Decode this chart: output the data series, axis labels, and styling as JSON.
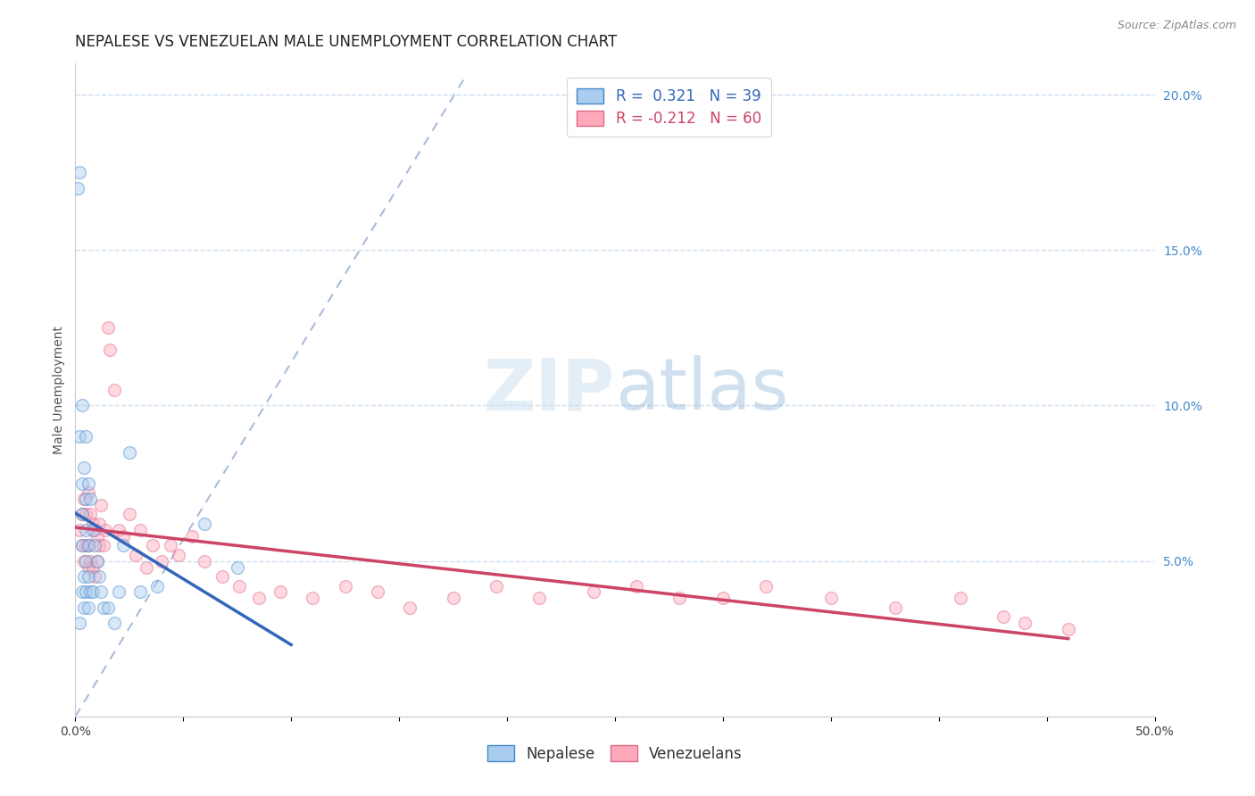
{
  "title": "NEPALESE VS VENEZUELAN MALE UNEMPLOYMENT CORRELATION CHART",
  "source_text": "Source: ZipAtlas.com",
  "ylabel": "Male Unemployment",
  "xlim": [
    0.0,
    0.5
  ],
  "ylim": [
    0.0,
    0.21
  ],
  "xticks": [
    0.0,
    0.05,
    0.1,
    0.15,
    0.2,
    0.25,
    0.3,
    0.35,
    0.4,
    0.45,
    0.5
  ],
  "yticks": [
    0.0,
    0.05,
    0.1,
    0.15,
    0.2
  ],
  "nepalese_R": 0.321,
  "nepalese_N": 39,
  "venezuelan_R": -0.212,
  "venezuelan_N": 60,
  "nepalese_color": "#aaccee",
  "nepalese_edge_color": "#4488cc",
  "nepalese_line_color": "#3366bb",
  "venezuelan_color": "#ffaabb",
  "venezuelan_edge_color": "#dd6688",
  "venezuelan_line_color": "#cc4466",
  "diagonal_color": "#aabbdd",
  "grid_color": "#ccddee",
  "background_color": "#ffffff",
  "nepalese_x": [
    0.001,
    0.002,
    0.002,
    0.002,
    0.003,
    0.003,
    0.003,
    0.003,
    0.003,
    0.004,
    0.004,
    0.004,
    0.005,
    0.005,
    0.005,
    0.005,
    0.005,
    0.006,
    0.006,
    0.006,
    0.006,
    0.007,
    0.007,
    0.008,
    0.008,
    0.009,
    0.01,
    0.011,
    0.012,
    0.013,
    0.015,
    0.018,
    0.02,
    0.022,
    0.025,
    0.03,
    0.038,
    0.06,
    0.075
  ],
  "nepalese_y": [
    0.17,
    0.175,
    0.09,
    0.03,
    0.1,
    0.075,
    0.065,
    0.055,
    0.04,
    0.08,
    0.045,
    0.035,
    0.09,
    0.07,
    0.06,
    0.05,
    0.04,
    0.075,
    0.055,
    0.045,
    0.035,
    0.07,
    0.04,
    0.06,
    0.04,
    0.055,
    0.05,
    0.045,
    0.04,
    0.035,
    0.035,
    0.03,
    0.04,
    0.055,
    0.085,
    0.04,
    0.042,
    0.062,
    0.048
  ],
  "venezuelan_x": [
    0.002,
    0.003,
    0.003,
    0.004,
    0.004,
    0.005,
    0.005,
    0.006,
    0.006,
    0.006,
    0.007,
    0.007,
    0.008,
    0.008,
    0.009,
    0.009,
    0.01,
    0.01,
    0.011,
    0.011,
    0.012,
    0.013,
    0.014,
    0.015,
    0.016,
    0.018,
    0.02,
    0.022,
    0.025,
    0.028,
    0.03,
    0.033,
    0.036,
    0.04,
    0.044,
    0.048,
    0.054,
    0.06,
    0.068,
    0.076,
    0.085,
    0.095,
    0.11,
    0.125,
    0.14,
    0.155,
    0.175,
    0.195,
    0.215,
    0.24,
    0.26,
    0.28,
    0.3,
    0.32,
    0.35,
    0.38,
    0.41,
    0.43,
    0.44,
    0.46
  ],
  "venezuelan_y": [
    0.06,
    0.065,
    0.055,
    0.07,
    0.05,
    0.065,
    0.055,
    0.072,
    0.048,
    0.055,
    0.065,
    0.05,
    0.062,
    0.048,
    0.06,
    0.045,
    0.058,
    0.05,
    0.062,
    0.055,
    0.068,
    0.055,
    0.06,
    0.125,
    0.118,
    0.105,
    0.06,
    0.058,
    0.065,
    0.052,
    0.06,
    0.048,
    0.055,
    0.05,
    0.055,
    0.052,
    0.058,
    0.05,
    0.045,
    0.042,
    0.038,
    0.04,
    0.038,
    0.042,
    0.04,
    0.035,
    0.038,
    0.042,
    0.038,
    0.04,
    0.042,
    0.038,
    0.038,
    0.042,
    0.038,
    0.035,
    0.038,
    0.032,
    0.03,
    0.028
  ],
  "title_fontsize": 12,
  "label_fontsize": 10,
  "tick_fontsize": 10,
  "legend_fontsize": 12,
  "source_fontsize": 9,
  "marker_size": 100,
  "marker_alpha": 0.45,
  "marker_linewidth": 1.0
}
